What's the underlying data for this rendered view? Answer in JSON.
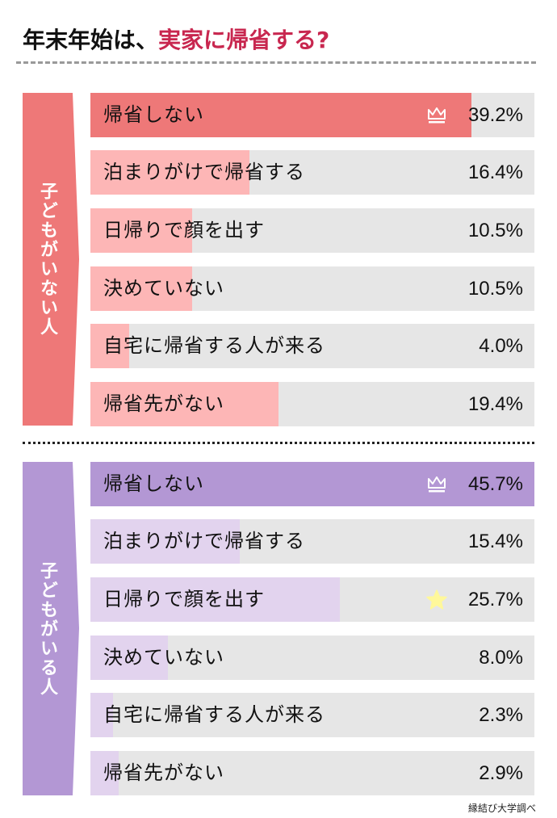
{
  "title": {
    "prefix": "年末年始は、",
    "highlight": "実家に帰省する?"
  },
  "credit": "縁結び大学調べ",
  "colors": {
    "title_highlight": "#c8274f",
    "group1_main": "#ee7878",
    "group1_light": "#fdb6b6",
    "group2_main": "#b397d4",
    "group2_light": "#e2d3ee",
    "track": "#e6e6e6",
    "star": "#fff89a"
  },
  "groups": [
    {
      "label": "子どもがいない人",
      "rows": [
        {
          "label": "帰省しない",
          "value": "39.2%",
          "badge": "crown-icon"
        },
        {
          "label": "泊まりがけで帰省する",
          "value": "16.4%"
        },
        {
          "label": "日帰りで顔を出す",
          "value": "10.5%"
        },
        {
          "label": "決めていない",
          "value": "10.5%"
        },
        {
          "label": "自宅に帰省する人が来る",
          "value": "4.0%"
        },
        {
          "label": "帰省先がない",
          "value": "19.4%"
        }
      ]
    },
    {
      "label": "子どもがいる人",
      "rows": [
        {
          "label": "帰省しない",
          "value": "45.7%",
          "badge": "crown-icon"
        },
        {
          "label": "泊まりがけで帰省する",
          "value": "15.4%"
        },
        {
          "label": "日帰りで顔を出す",
          "value": "25.7%",
          "badge": "star-icon"
        },
        {
          "label": "決めていない",
          "value": "8.0%"
        },
        {
          "label": "自宅に帰省する人が来る",
          "value": "2.3%"
        },
        {
          "label": "帰省先がない",
          "value": "2.9%"
        }
      ]
    }
  ],
  "chart_data": [
    {
      "type": "bar",
      "title": "年末年始は、実家に帰省する? — 子どもがいない人",
      "categories": [
        "帰省しない",
        "泊まりがけで帰省する",
        "日帰りで顔を出す",
        "決めていない",
        "自宅に帰省する人が来る",
        "帰省先がない"
      ],
      "values": [
        39.2,
        16.4,
        10.5,
        10.5,
        4.0,
        19.4
      ],
      "unit": "%",
      "orientation": "horizontal",
      "highlight": {
        "top": "帰省しない"
      }
    },
    {
      "type": "bar",
      "title": "年末年始は、実家に帰省する? — 子どもがいる人",
      "categories": [
        "帰省しない",
        "泊まりがけで帰省する",
        "日帰りで顔を出す",
        "決めていない",
        "自宅に帰省する人が来る",
        "帰省先がない"
      ],
      "values": [
        45.7,
        15.4,
        25.7,
        8.0,
        2.3,
        2.9
      ],
      "unit": "%",
      "orientation": "horizontal",
      "highlight": {
        "top": "帰省しない",
        "star": "日帰りで顔を出す"
      }
    }
  ]
}
